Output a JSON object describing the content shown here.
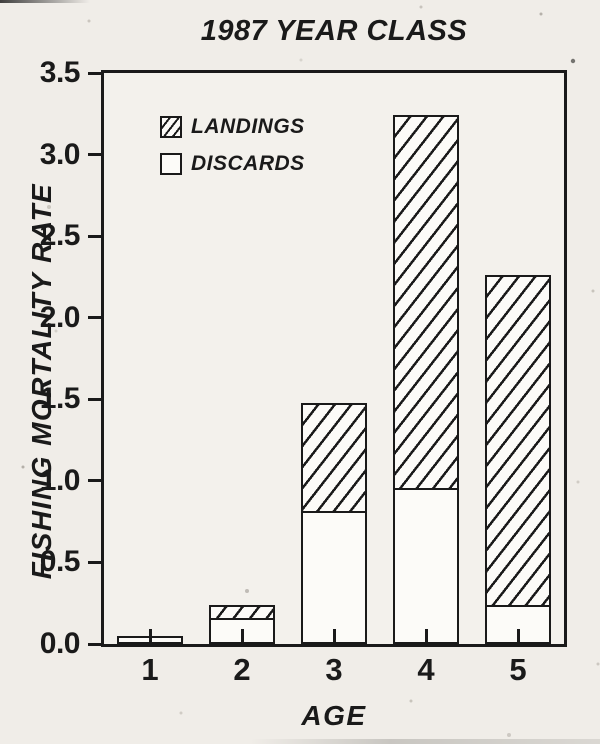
{
  "chart_data": {
    "type": "bar",
    "stacked": true,
    "title": "1987 YEAR CLASS",
    "xlabel": "AGE",
    "ylabel": "FISHING MORTALITY RATE",
    "categories": [
      "1",
      "2",
      "3",
      "4",
      "5"
    ],
    "series": [
      {
        "name": "DISCARDS",
        "fill": "open-white",
        "values": [
          0.05,
          0.16,
          0.82,
          0.96,
          0.24
        ]
      },
      {
        "name": "LANDINGS",
        "fill": "diagonal-hatch",
        "values": [
          0.0,
          0.08,
          0.66,
          2.28,
          2.02
        ]
      }
    ],
    "ylim": [
      0,
      3.5
    ],
    "y_ticks": [
      "0.0",
      "0.5",
      "1.0",
      "1.5",
      "2.0",
      "2.5",
      "3.0",
      "3.5"
    ],
    "x_tick_style": "inside",
    "grid": false,
    "legend_position": "upper-left-inside"
  },
  "legend": {
    "items": [
      {
        "label": "LANDINGS",
        "swatch": "diagonal-hatch"
      },
      {
        "label": "DISCARDS",
        "swatch": "open-white"
      }
    ]
  },
  "colors": {
    "ink": "#1a1a1a",
    "paper": "#f0ede8",
    "plot_background": "#f3f1ec",
    "bar_fill": "#fcfbf8"
  }
}
